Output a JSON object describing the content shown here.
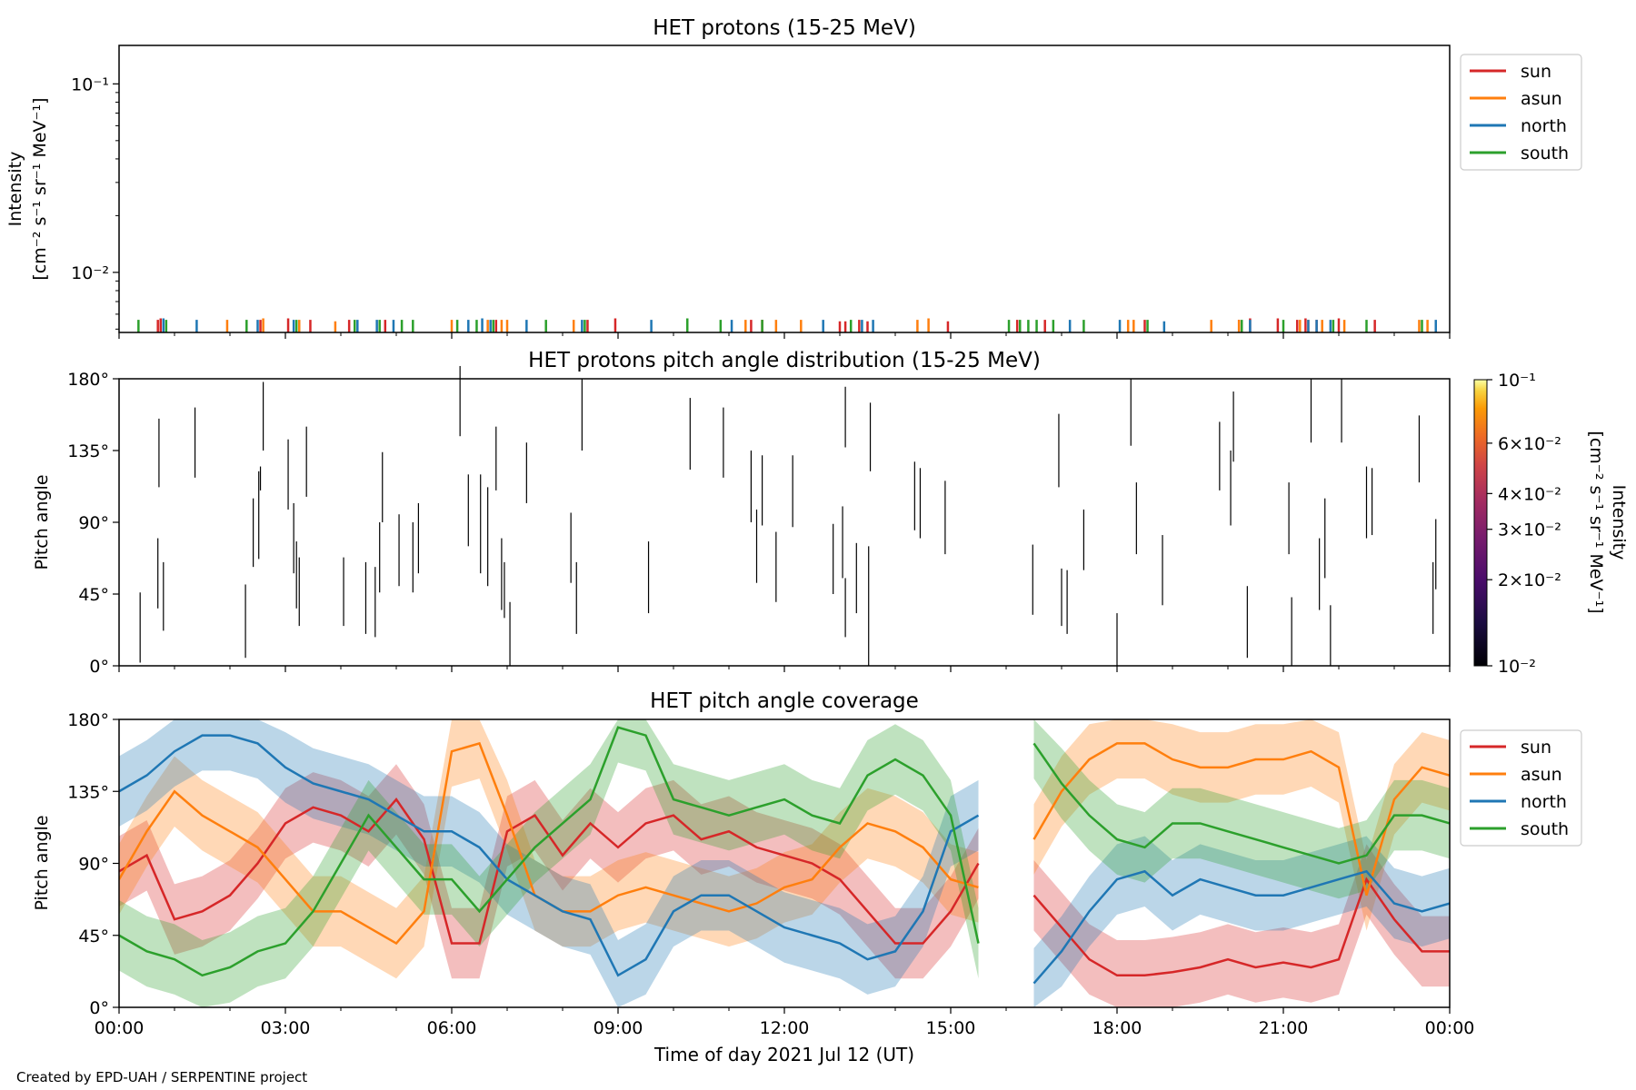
{
  "chart_data": [
    {
      "type": "line",
      "title": "HET protons (15-25 MeV)",
      "ylabel_line1": "Intensity",
      "ylabel_line2": "[cm⁻² s⁻¹ sr⁻¹ MeV⁻¹]",
      "yscale": "log",
      "ylim": [
        0.0048,
        0.16
      ],
      "xlim_hours": [
        0,
        24
      ],
      "y_ticks": [
        {
          "value": 0.1,
          "label": "10⁻¹"
        },
        {
          "value": 0.01,
          "label": "10⁻²"
        }
      ],
      "legend_position": "outside-right",
      "series": [
        {
          "name": "sun",
          "color": "#d62728",
          "x_hours": [
            0.7,
            0.75,
            2.55,
            3.05,
            3.45,
            4.15,
            4.8,
            6.8,
            8.45,
            8.95,
            11.4,
            11.6,
            13.0,
            13.1,
            13.35,
            13.5,
            14.95,
            16.2,
            16.7,
            18.5,
            20.2,
            20.4,
            20.9,
            21.25,
            21.4,
            21.6,
            22.0,
            22.65
          ],
          "y": [
            0.0056,
            0.0057,
            0.0056,
            0.0057,
            0.0056,
            0.0056,
            0.0056,
            0.0056,
            0.0056,
            0.0057,
            0.0056,
            0.0056,
            0.0055,
            0.0055,
            0.0056,
            0.0055,
            0.0055,
            0.0056,
            0.0056,
            0.0056,
            0.0056,
            0.0057,
            0.0057,
            0.0056,
            0.0057,
            0.0056,
            0.0057,
            0.0056
          ]
        },
        {
          "name": "asun",
          "color": "#ff7f0e",
          "x_hours": [
            1.95,
            2.6,
            3.25,
            3.9,
            6.0,
            6.65,
            6.9,
            7.0,
            8.2,
            11.3,
            11.85,
            12.3,
            14.4,
            14.6,
            18.2,
            18.3,
            19.7,
            20.2,
            21.3,
            21.45,
            21.7,
            22.1,
            23.45,
            23.6
          ],
          "y": [
            0.0056,
            0.0057,
            0.0056,
            0.0055,
            0.0056,
            0.0056,
            0.0056,
            0.0056,
            0.0056,
            0.0056,
            0.0056,
            0.0056,
            0.0056,
            0.0057,
            0.0056,
            0.0056,
            0.0056,
            0.0056,
            0.0056,
            0.0056,
            0.0056,
            0.0056,
            0.0056,
            0.0056
          ]
        },
        {
          "name": "north",
          "color": "#1f77b4",
          "x_hours": [
            0.8,
            1.4,
            2.5,
            3.15,
            4.3,
            4.65,
            4.95,
            6.3,
            6.55,
            6.7,
            7.35,
            8.35,
            9.6,
            11.05,
            12.7,
            13.4,
            13.6,
            17.15,
            18.05,
            18.85,
            20.4,
            21.45,
            21.6,
            21.85,
            23.75
          ],
          "y": [
            0.0057,
            0.0056,
            0.0056,
            0.0056,
            0.0056,
            0.0056,
            0.0056,
            0.0056,
            0.0057,
            0.0056,
            0.0056,
            0.0056,
            0.0056,
            0.0056,
            0.0056,
            0.0056,
            0.0056,
            0.0056,
            0.0056,
            0.0055,
            0.0056,
            0.0056,
            0.0056,
            0.0056,
            0.0056
          ]
        },
        {
          "name": "south",
          "color": "#2ca02c",
          "x_hours": [
            0.35,
            0.85,
            2.3,
            3.2,
            4.25,
            4.7,
            5.1,
            5.3,
            6.1,
            6.45,
            6.75,
            7.7,
            8.4,
            10.25,
            10.85,
            11.6,
            13.2,
            16.05,
            16.25,
            16.4,
            16.55,
            16.85,
            17.4,
            18.55,
            20.25,
            21.0,
            21.9,
            22.5,
            23.5
          ],
          "y": [
            0.0056,
            0.0056,
            0.0056,
            0.0056,
            0.0056,
            0.0056,
            0.0056,
            0.0056,
            0.0056,
            0.0056,
            0.0056,
            0.0056,
            0.0056,
            0.0057,
            0.0056,
            0.0056,
            0.0056,
            0.0056,
            0.0056,
            0.0056,
            0.0056,
            0.0056,
            0.0056,
            0.0056,
            0.0056,
            0.0056,
            0.0056,
            0.0056,
            0.0056
          ]
        }
      ]
    },
    {
      "type": "heatmap",
      "title": "HET protons pitch angle distribution (15-25 MeV)",
      "ylabel": "Pitch angle",
      "ylim": [
        0,
        180
      ],
      "xlim_hours": [
        0,
        24
      ],
      "y_ticks": [
        "0°",
        "45°",
        "90°",
        "135°",
        "180°"
      ],
      "colorbar": {
        "label": "Intensity [cm⁻² s⁻¹ sr⁻¹ MeV⁻¹]",
        "colormap": "inferno",
        "scale": "log",
        "range": [
          0.01,
          0.1
        ],
        "ticks": [
          {
            "value": 0.1,
            "label": "10⁻¹"
          },
          {
            "value": 0.06,
            "label": "6×10⁻²"
          },
          {
            "value": 0.04,
            "label": "4×10⁻²"
          },
          {
            "value": 0.03,
            "label": "3×10⁻²"
          },
          {
            "value": 0.02,
            "label": "2×10⁻²"
          },
          {
            "value": 0.01,
            "label": "10⁻²"
          }
        ]
      },
      "segments": [
        [
          0.38,
          2,
          46
        ],
        [
          0.7,
          36,
          80
        ],
        [
          0.72,
          112,
          155
        ],
        [
          0.8,
          22,
          65
        ],
        [
          1.37,
          118,
          162
        ],
        [
          2.28,
          5,
          51
        ],
        [
          2.42,
          62,
          105
        ],
        [
          2.52,
          67,
          122
        ],
        [
          2.55,
          110,
          125
        ],
        [
          2.6,
          135,
          178
        ],
        [
          3.05,
          98,
          142
        ],
        [
          3.15,
          58,
          102
        ],
        [
          3.2,
          36,
          78
        ],
        [
          3.25,
          25,
          68
        ],
        [
          3.38,
          106,
          150
        ],
        [
          4.05,
          25,
          68
        ],
        [
          4.45,
          20,
          65
        ],
        [
          4.62,
          18,
          62
        ],
        [
          4.7,
          46,
          90
        ],
        [
          4.75,
          90,
          134
        ],
        [
          5.05,
          50,
          95
        ],
        [
          5.3,
          46,
          90
        ],
        [
          5.4,
          58,
          102
        ],
        [
          6.15,
          144,
          188
        ],
        [
          6.3,
          75,
          120
        ],
        [
          6.52,
          58,
          120
        ],
        [
          6.65,
          50,
          112
        ],
        [
          6.8,
          110,
          150
        ],
        [
          6.9,
          35,
          80
        ],
        [
          6.95,
          30,
          65
        ],
        [
          7.05,
          0,
          40
        ],
        [
          7.35,
          102,
          140
        ],
        [
          8.15,
          52,
          96
        ],
        [
          8.25,
          20,
          65
        ],
        [
          8.35,
          135,
          180
        ],
        [
          9.55,
          33,
          78
        ],
        [
          10.3,
          123,
          168
        ],
        [
          10.9,
          118,
          162
        ],
        [
          11.4,
          90,
          135
        ],
        [
          11.5,
          52,
          98
        ],
        [
          11.6,
          88,
          132
        ],
        [
          11.85,
          40,
          84
        ],
        [
          12.15,
          87,
          132
        ],
        [
          12.88,
          45,
          89
        ],
        [
          13.05,
          55,
          100
        ],
        [
          13.1,
          18,
          55
        ],
        [
          13.1,
          137,
          175
        ],
        [
          13.3,
          33,
          77
        ],
        [
          13.52,
          0,
          75
        ],
        [
          13.55,
          122,
          165
        ],
        [
          14.35,
          85,
          128
        ],
        [
          14.45,
          80,
          124
        ],
        [
          14.9,
          70,
          116
        ],
        [
          16.48,
          32,
          76
        ],
        [
          16.95,
          112,
          158
        ],
        [
          17.0,
          25,
          61
        ],
        [
          17.1,
          20,
          60
        ],
        [
          17.4,
          60,
          98
        ],
        [
          18.0,
          0,
          33
        ],
        [
          18.25,
          138,
          180
        ],
        [
          18.35,
          70,
          115
        ],
        [
          18.82,
          38,
          82
        ],
        [
          19.85,
          110,
          153
        ],
        [
          20.05,
          88,
          135
        ],
        [
          20.1,
          128,
          172
        ],
        [
          20.35,
          5,
          50
        ],
        [
          21.1,
          70,
          115
        ],
        [
          21.15,
          0,
          43
        ],
        [
          21.5,
          140,
          180
        ],
        [
          21.65,
          35,
          80
        ],
        [
          21.75,
          55,
          105
        ],
        [
          21.85,
          0,
          38
        ],
        [
          22.05,
          140,
          180
        ],
        [
          22.5,
          80,
          125
        ],
        [
          22.6,
          82,
          124
        ],
        [
          23.45,
          115,
          157
        ],
        [
          23.7,
          20,
          65
        ],
        [
          23.75,
          48,
          92
        ]
      ],
      "segment_color": "#000000"
    },
    {
      "type": "area",
      "title": "HET pitch angle coverage",
      "xlabel": "Time of day 2021 Jul 12 (UT)",
      "ylabel": "Pitch angle",
      "ylim": [
        0,
        180
      ],
      "xlim_hours": [
        0,
        24
      ],
      "x_ticks": [
        "00:00",
        "03:00",
        "06:00",
        "09:00",
        "12:00",
        "15:00",
        "18:00",
        "21:00",
        "00:00"
      ],
      "y_ticks": [
        "0°",
        "45°",
        "90°",
        "135°",
        "180°"
      ],
      "legend_position": "outside-right",
      "data_gap_hours": [
        15.65,
        16.5
      ],
      "shaded_halfwidth_deg": 22,
      "series": [
        {
          "name": "sun",
          "color": "#d62728",
          "x_hours": [
            0,
            0.5,
            1,
            1.5,
            2,
            2.5,
            3,
            3.5,
            4,
            4.5,
            5,
            5.5,
            6,
            6.5,
            7,
            7.5,
            8,
            8.5,
            9,
            9.5,
            10,
            10.5,
            11,
            11.5,
            12,
            12.5,
            13,
            13.5,
            14,
            14.5,
            15,
            15.5,
            16.5,
            17,
            17.5,
            18,
            18.5,
            19,
            19.5,
            20,
            20.5,
            21,
            21.5,
            22,
            22.5,
            23,
            23.5,
            24
          ],
          "y": [
            85,
            95,
            55,
            60,
            70,
            90,
            115,
            125,
            120,
            110,
            130,
            105,
            40,
            40,
            110,
            120,
            95,
            115,
            100,
            115,
            120,
            105,
            110,
            100,
            95,
            90,
            80,
            60,
            40,
            40,
            60,
            90,
            70,
            50,
            30,
            20,
            20,
            22,
            25,
            30,
            25,
            28,
            25,
            30,
            80,
            55,
            35,
            35
          ]
        },
        {
          "name": "asun",
          "color": "#ff7f0e",
          "x_hours": [
            0,
            0.5,
            1,
            1.5,
            2,
            2.5,
            3,
            3.5,
            4,
            4.5,
            5,
            5.5,
            6,
            6.5,
            7,
            7.5,
            8,
            8.5,
            9,
            9.5,
            10,
            10.5,
            11,
            11.5,
            12,
            12.5,
            13,
            13.5,
            14,
            14.5,
            15,
            15.5,
            16.5,
            17,
            17.5,
            18,
            18.5,
            19,
            19.5,
            20,
            20.5,
            21,
            21.5,
            22,
            22.5,
            23,
            23.5,
            24
          ],
          "y": [
            80,
            110,
            135,
            120,
            110,
            100,
            80,
            60,
            60,
            50,
            40,
            60,
            160,
            165,
            120,
            70,
            60,
            60,
            70,
            75,
            70,
            65,
            60,
            65,
            75,
            80,
            100,
            115,
            110,
            100,
            80,
            75,
            105,
            135,
            155,
            165,
            165,
            155,
            150,
            150,
            155,
            155,
            160,
            150,
            70,
            130,
            150,
            145
          ]
        },
        {
          "name": "north",
          "color": "#1f77b4",
          "x_hours": [
            0,
            0.5,
            1,
            1.5,
            2,
            2.5,
            3,
            3.5,
            4,
            4.5,
            5,
            5.5,
            6,
            6.5,
            7,
            7.5,
            8,
            8.5,
            9,
            9.5,
            10,
            10.5,
            11,
            11.5,
            12,
            12.5,
            13,
            13.5,
            14,
            14.5,
            15,
            15.5,
            16.5,
            17,
            17.5,
            18,
            18.5,
            19,
            19.5,
            20,
            20.5,
            21,
            21.5,
            22,
            22.5,
            23,
            23.5,
            24
          ],
          "y": [
            135,
            145,
            160,
            170,
            170,
            165,
            150,
            140,
            135,
            130,
            120,
            110,
            110,
            100,
            80,
            70,
            60,
            55,
            20,
            30,
            60,
            70,
            70,
            60,
            50,
            45,
            40,
            30,
            35,
            60,
            110,
            120,
            15,
            35,
            60,
            80,
            85,
            70,
            80,
            75,
            70,
            70,
            75,
            80,
            85,
            65,
            60,
            65
          ]
        },
        {
          "name": "south",
          "color": "#2ca02c",
          "x_hours": [
            0,
            0.5,
            1,
            1.5,
            2,
            2.5,
            3,
            3.5,
            4,
            4.5,
            5,
            5.5,
            6,
            6.5,
            7,
            7.5,
            8,
            8.5,
            9,
            9.5,
            10,
            10.5,
            11,
            11.5,
            12,
            12.5,
            13,
            13.5,
            14,
            14.5,
            15,
            15.5,
            16.5,
            17,
            17.5,
            18,
            18.5,
            19,
            19.5,
            20,
            20.5,
            21,
            21.5,
            22,
            22.5,
            23,
            23.5,
            24
          ],
          "y": [
            45,
            35,
            30,
            20,
            25,
            35,
            40,
            60,
            90,
            120,
            100,
            80,
            80,
            60,
            80,
            100,
            115,
            130,
            175,
            170,
            130,
            125,
            120,
            125,
            130,
            120,
            115,
            145,
            155,
            145,
            120,
            40,
            165,
            140,
            120,
            105,
            100,
            115,
            115,
            110,
            105,
            100,
            95,
            90,
            95,
            120,
            120,
            115
          ]
        }
      ]
    }
  ],
  "footer_text": "Created by EPD-UAH / SERPENTINE project"
}
